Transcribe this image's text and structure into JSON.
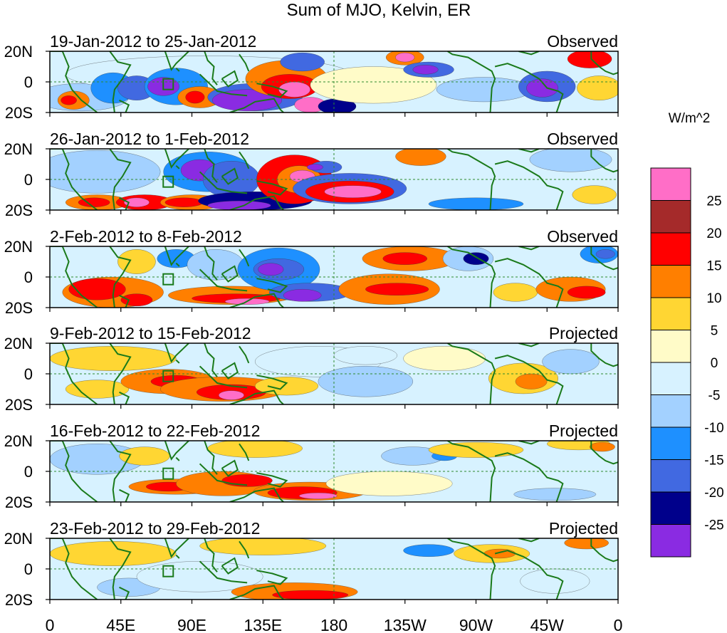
{
  "title": "Sum of MJO, Kelvin, ER",
  "units": "W/m^2",
  "colors": {
    "land_outline": "#1a7a1a",
    "reference_line": "#2e8b2e"
  },
  "chart_data": {
    "type": "heatmap",
    "title": "Sum of MJO, Kelvin, ER",
    "variable_units": "W/m^2",
    "latitude_labels": [
      "20N",
      "0",
      "20S"
    ],
    "latitude_range": [
      -20,
      20
    ],
    "longitude_labels": [
      "0",
      "45E",
      "90E",
      "135E",
      "180",
      "135W",
      "90W",
      "45W",
      "0"
    ],
    "longitude_range": [
      0,
      360
    ],
    "colorbar": {
      "tick_labels": [
        "25",
        "20",
        "15",
        "10",
        "5",
        "0",
        "-5",
        "-10",
        "-15",
        "-20",
        "-25"
      ],
      "levels": [
        25,
        20,
        15,
        10,
        5,
        0,
        -5,
        -10,
        -15,
        -20,
        -25
      ],
      "colors": [
        "#ff6ec7",
        "#a52a2a",
        "#ff0000",
        "#ff7f00",
        "#ffd633",
        "#fffbc8",
        "#d7f2ff",
        "#a3d1ff",
        "#1e90ff",
        "#4169e1",
        "#00008b",
        "#8a2be2"
      ]
    },
    "panels": [
      {
        "period": "19-Jan-2012 to 25-Jan-2012",
        "type": "Observed"
      },
      {
        "period": "26-Jan-2012 to 1-Feb-2012",
        "type": "Observed"
      },
      {
        "period": "2-Feb-2012 to 8-Feb-2012",
        "type": "Observed"
      },
      {
        "period": "9-Feb-2012 to 15-Feb-2012",
        "type": "Projected"
      },
      {
        "period": "16-Feb-2012 to 22-Feb-2012",
        "type": "Projected"
      },
      {
        "period": "23-Feb-2012 to 29-Feb-2012",
        "type": "Projected"
      }
    ],
    "reference_lines": {
      "equator": 0,
      "meridian_lon": 180
    }
  }
}
